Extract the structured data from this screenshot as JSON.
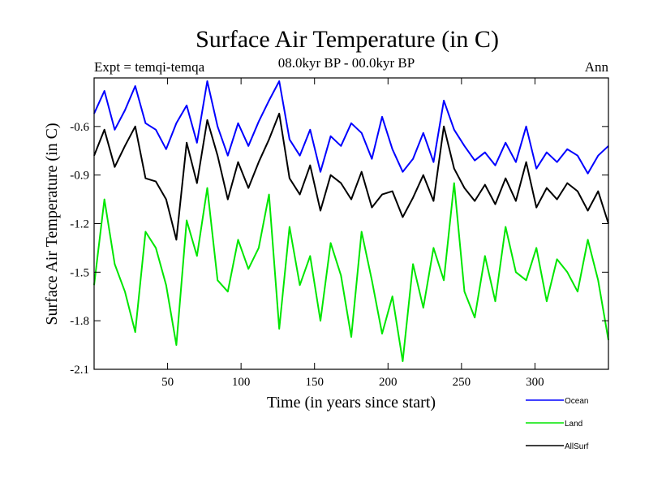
{
  "chart_data": {
    "type": "line",
    "title": "Surface Air Temperature (in C)",
    "subtitle": "08.0kyr BP - 00.0kyr BP",
    "experiment_label": "Expt = temqi-temqa",
    "season_label": "Ann",
    "xlabel": "Time (in years since start)",
    "ylabel": "Surface Air Temperature (in C)",
    "xlim": [
      0,
      350
    ],
    "ylim": [
      -2.1,
      -0.3
    ],
    "xticks": [
      50,
      100,
      150,
      200,
      250,
      300
    ],
    "yticks": [
      -2.1,
      -1.8,
      -1.5,
      -1.2,
      -0.9,
      -0.6
    ],
    "grid": false,
    "legend_position": "bottom-right",
    "series": [
      {
        "name": "Ocean",
        "color": "#0000ff",
        "x": [
          0,
          7,
          14,
          21,
          28,
          35,
          42,
          49,
          56,
          63,
          70,
          77,
          84,
          91,
          98,
          105,
          112,
          119,
          126,
          133,
          140,
          147,
          154,
          161,
          168,
          175,
          182,
          189,
          196,
          203,
          210,
          217,
          224,
          231,
          238,
          245,
          252,
          259,
          266,
          273,
          280,
          287,
          294,
          301,
          308,
          315,
          322,
          329,
          336,
          343,
          350
        ],
        "values": [
          -0.52,
          -0.38,
          -0.62,
          -0.5,
          -0.35,
          -0.58,
          -0.62,
          -0.74,
          -0.58,
          -0.47,
          -0.7,
          -0.32,
          -0.6,
          -0.78,
          -0.58,
          -0.72,
          -0.57,
          -0.44,
          -0.32,
          -0.68,
          -0.78,
          -0.62,
          -0.88,
          -0.66,
          -0.72,
          -0.58,
          -0.64,
          -0.8,
          -0.54,
          -0.74,
          -0.88,
          -0.8,
          -0.64,
          -0.82,
          -0.44,
          -0.62,
          -0.72,
          -0.81,
          -0.76,
          -0.84,
          -0.7,
          -0.82,
          -0.6,
          -0.86,
          -0.76,
          -0.82,
          -0.74,
          -0.78,
          -0.89,
          -0.78,
          -0.72
        ]
      },
      {
        "name": "Land",
        "color": "#00e600",
        "x": [
          0,
          7,
          14,
          21,
          28,
          35,
          42,
          49,
          56,
          63,
          70,
          77,
          84,
          91,
          98,
          105,
          112,
          119,
          126,
          133,
          140,
          147,
          154,
          161,
          168,
          175,
          182,
          189,
          196,
          203,
          210,
          217,
          224,
          231,
          238,
          245,
          252,
          259,
          266,
          273,
          280,
          287,
          294,
          301,
          308,
          315,
          322,
          329,
          336,
          343,
          350
        ],
        "values": [
          -1.58,
          -1.05,
          -1.45,
          -1.62,
          -1.87,
          -1.25,
          -1.35,
          -1.58,
          -1.95,
          -1.18,
          -1.4,
          -0.98,
          -1.55,
          -1.62,
          -1.3,
          -1.48,
          -1.35,
          -1.02,
          -1.85,
          -1.22,
          -1.58,
          -1.4,
          -1.8,
          -1.32,
          -1.52,
          -1.9,
          -1.25,
          -1.55,
          -1.88,
          -1.65,
          -2.05,
          -1.45,
          -1.72,
          -1.35,
          -1.55,
          -0.95,
          -1.62,
          -1.78,
          -1.4,
          -1.68,
          -1.22,
          -1.5,
          -1.55,
          -1.35,
          -1.68,
          -1.42,
          -1.5,
          -1.62,
          -1.3,
          -1.55,
          -1.92
        ]
      },
      {
        "name": "AllSurf",
        "color": "#000000",
        "x": [
          0,
          7,
          14,
          21,
          28,
          35,
          42,
          49,
          56,
          63,
          70,
          77,
          84,
          91,
          98,
          105,
          112,
          119,
          126,
          133,
          140,
          147,
          154,
          161,
          168,
          175,
          182,
          189,
          196,
          203,
          210,
          217,
          224,
          231,
          238,
          245,
          252,
          259,
          266,
          273,
          280,
          287,
          294,
          301,
          308,
          315,
          322,
          329,
          336,
          343,
          350
        ],
        "values": [
          -0.78,
          -0.62,
          -0.85,
          -0.72,
          -0.6,
          -0.92,
          -0.94,
          -1.05,
          -1.3,
          -0.7,
          -0.95,
          -0.56,
          -0.78,
          -1.05,
          -0.82,
          -0.98,
          -0.82,
          -0.68,
          -0.52,
          -0.92,
          -1.02,
          -0.84,
          -1.12,
          -0.9,
          -0.95,
          -1.05,
          -0.88,
          -1.1,
          -1.02,
          -1.0,
          -1.16,
          -1.04,
          -0.9,
          -1.06,
          -0.6,
          -0.86,
          -0.98,
          -1.06,
          -0.96,
          -1.08,
          -0.92,
          -1.06,
          -0.82,
          -1.1,
          -0.98,
          -1.05,
          -0.95,
          -1.0,
          -1.12,
          -1.0,
          -1.2
        ]
      }
    ]
  }
}
